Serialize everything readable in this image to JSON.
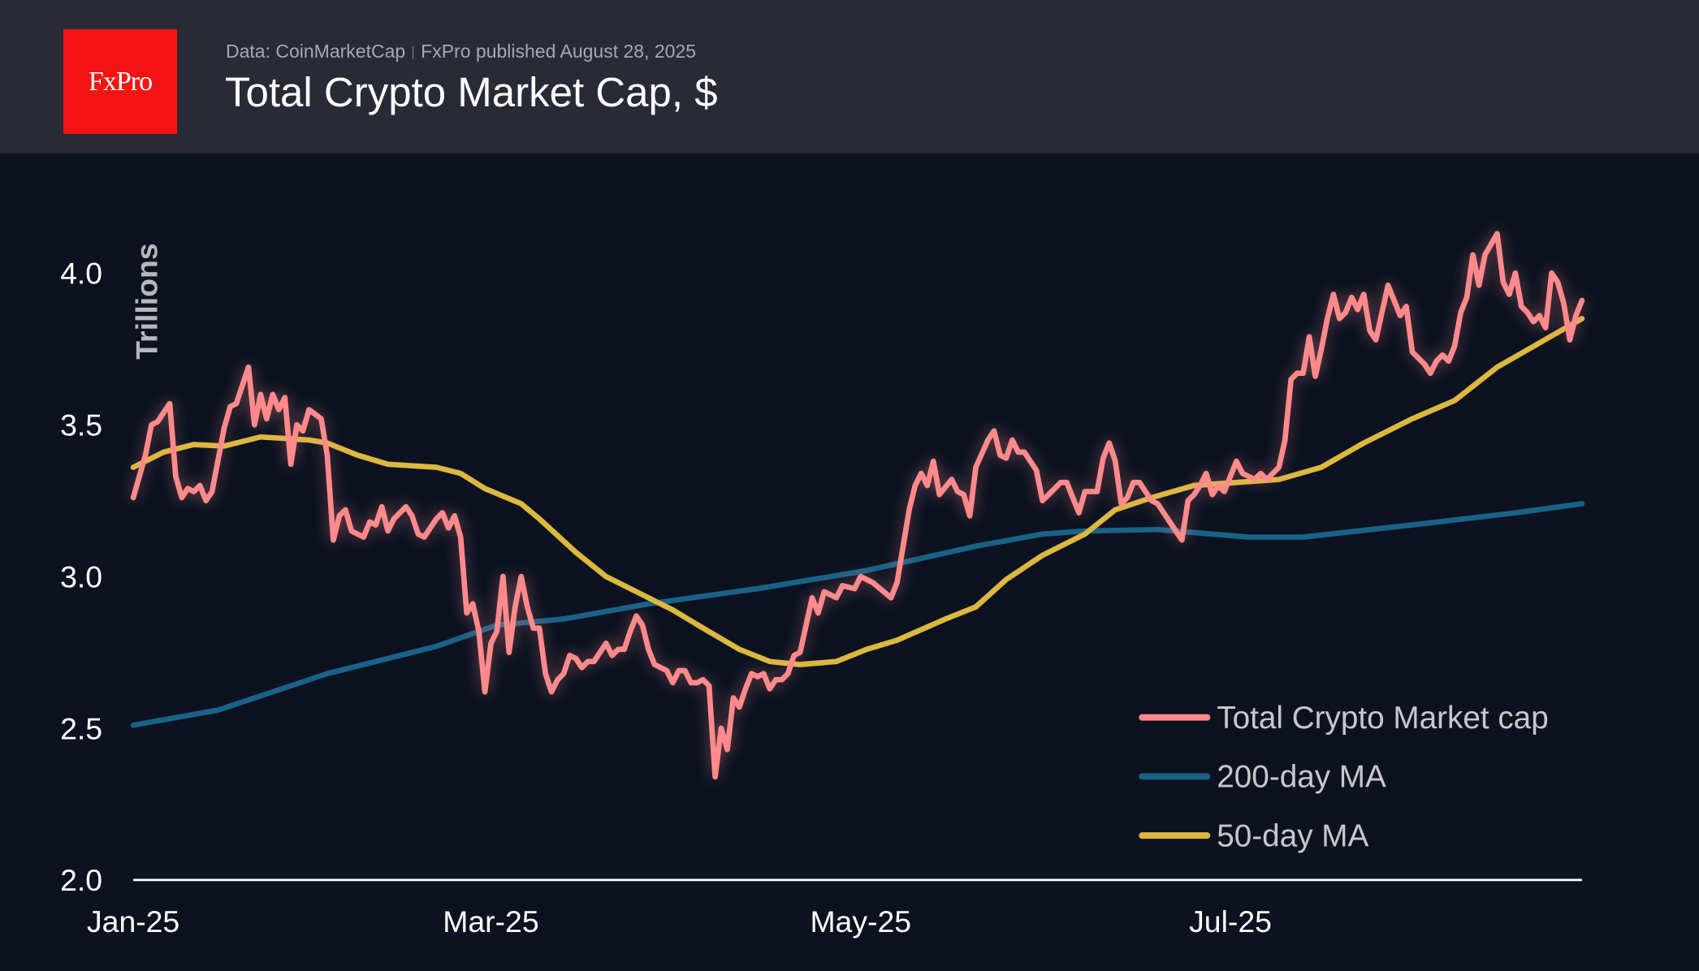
{
  "header": {
    "logo_text": "FxPro",
    "source": "Data: CoinMarketCap",
    "published": "FxPro published August 28, 2025",
    "title": "Total Crypto Market Cap, $"
  },
  "chart_data": {
    "type": "line",
    "title": "Total Crypto Market Cap, $",
    "ylabel": "Trillions",
    "xlabel": "",
    "ylim": [
      2.0,
      4.2
    ],
    "yticks": [
      "2.0",
      "2.5",
      "3.0",
      "3.5",
      "4.0"
    ],
    "xticks": [
      {
        "date": "2025-01-01",
        "label": "Jan-25"
      },
      {
        "date": "2025-03-01",
        "label": "Mar-25"
      },
      {
        "date": "2025-05-01",
        "label": "May-25"
      },
      {
        "date": "2025-07-01",
        "label": "Jul-25"
      }
    ],
    "xlim": [
      "2025-01-01",
      "2025-08-28"
    ],
    "grid": false,
    "legend_position": "bottom-right",
    "series": [
      {
        "name": "Total Crypto Market cap",
        "color": "#ff8a8c",
        "points": [
          [
            "2025-01-01",
            3.26
          ],
          [
            "2025-01-03",
            3.4
          ],
          [
            "2025-01-04",
            3.5
          ],
          [
            "2025-01-05",
            3.51
          ],
          [
            "2025-01-07",
            3.57
          ],
          [
            "2025-01-08",
            3.33
          ],
          [
            "2025-01-09",
            3.26
          ],
          [
            "2025-01-10",
            3.29
          ],
          [
            "2025-01-11",
            3.28
          ],
          [
            "2025-01-12",
            3.3
          ],
          [
            "2025-01-13",
            3.25
          ],
          [
            "2025-01-14",
            3.28
          ],
          [
            "2025-01-16",
            3.49
          ],
          [
            "2025-01-17",
            3.56
          ],
          [
            "2025-01-18",
            3.57
          ],
          [
            "2025-01-20",
            3.69
          ],
          [
            "2025-01-21",
            3.5
          ],
          [
            "2025-01-22",
            3.6
          ],
          [
            "2025-01-23",
            3.52
          ],
          [
            "2025-01-24",
            3.6
          ],
          [
            "2025-01-25",
            3.55
          ],
          [
            "2025-01-26",
            3.59
          ],
          [
            "2025-01-27",
            3.37
          ],
          [
            "2025-01-28",
            3.5
          ],
          [
            "2025-01-29",
            3.48
          ],
          [
            "2025-01-30",
            3.55
          ],
          [
            "2025-02-01",
            3.52
          ],
          [
            "2025-02-02",
            3.4
          ],
          [
            "2025-02-03",
            3.12
          ],
          [
            "2025-02-04",
            3.2
          ],
          [
            "2025-02-05",
            3.22
          ],
          [
            "2025-02-06",
            3.15
          ],
          [
            "2025-02-08",
            3.13
          ],
          [
            "2025-02-09",
            3.18
          ],
          [
            "2025-02-10",
            3.17
          ],
          [
            "2025-02-11",
            3.23
          ],
          [
            "2025-02-12",
            3.15
          ],
          [
            "2025-02-13",
            3.19
          ],
          [
            "2025-02-15",
            3.23
          ],
          [
            "2025-02-16",
            3.2
          ],
          [
            "2025-02-17",
            3.14
          ],
          [
            "2025-02-18",
            3.13
          ],
          [
            "2025-02-20",
            3.19
          ],
          [
            "2025-02-21",
            3.21
          ],
          [
            "2025-02-22",
            3.16
          ],
          [
            "2025-02-23",
            3.2
          ],
          [
            "2025-02-24",
            3.13
          ],
          [
            "2025-02-25",
            2.88
          ],
          [
            "2025-02-26",
            2.91
          ],
          [
            "2025-02-27",
            2.82
          ],
          [
            "2025-02-28",
            2.62
          ],
          [
            "2025-03-01",
            2.78
          ],
          [
            "2025-03-02",
            2.82
          ],
          [
            "2025-03-03",
            3.0
          ],
          [
            "2025-03-04",
            2.75
          ],
          [
            "2025-03-05",
            2.9
          ],
          [
            "2025-03-06",
            3.0
          ],
          [
            "2025-03-07",
            2.9
          ],
          [
            "2025-03-08",
            2.83
          ],
          [
            "2025-03-09",
            2.83
          ],
          [
            "2025-03-10",
            2.68
          ],
          [
            "2025-03-11",
            2.62
          ],
          [
            "2025-03-12",
            2.66
          ],
          [
            "2025-03-13",
            2.68
          ],
          [
            "2025-03-14",
            2.74
          ],
          [
            "2025-03-15",
            2.73
          ],
          [
            "2025-03-16",
            2.7
          ],
          [
            "2025-03-17",
            2.72
          ],
          [
            "2025-03-18",
            2.72
          ],
          [
            "2025-03-20",
            2.78
          ],
          [
            "2025-03-21",
            2.74
          ],
          [
            "2025-03-22",
            2.76
          ],
          [
            "2025-03-23",
            2.76
          ],
          [
            "2025-03-24",
            2.82
          ],
          [
            "2025-03-25",
            2.87
          ],
          [
            "2025-03-26",
            2.84
          ],
          [
            "2025-03-27",
            2.76
          ],
          [
            "2025-03-28",
            2.71
          ],
          [
            "2025-03-30",
            2.69
          ],
          [
            "2025-03-31",
            2.65
          ],
          [
            "2025-04-01",
            2.69
          ],
          [
            "2025-04-02",
            2.69
          ],
          [
            "2025-04-03",
            2.65
          ],
          [
            "2025-04-04",
            2.65
          ],
          [
            "2025-04-05",
            2.66
          ],
          [
            "2025-04-06",
            2.64
          ],
          [
            "2025-04-07",
            2.34
          ],
          [
            "2025-04-08",
            2.5
          ],
          [
            "2025-04-09",
            2.43
          ],
          [
            "2025-04-10",
            2.6
          ],
          [
            "2025-04-11",
            2.57
          ],
          [
            "2025-04-12",
            2.63
          ],
          [
            "2025-04-13",
            2.68
          ],
          [
            "2025-04-14",
            2.67
          ],
          [
            "2025-04-15",
            2.68
          ],
          [
            "2025-04-16",
            2.63
          ],
          [
            "2025-04-17",
            2.66
          ],
          [
            "2025-04-18",
            2.66
          ],
          [
            "2025-04-19",
            2.68
          ],
          [
            "2025-04-20",
            2.74
          ],
          [
            "2025-04-21",
            2.75
          ],
          [
            "2025-04-23",
            2.93
          ],
          [
            "2025-04-24",
            2.88
          ],
          [
            "2025-04-25",
            2.95
          ],
          [
            "2025-04-27",
            2.93
          ],
          [
            "2025-04-28",
            2.97
          ],
          [
            "2025-04-30",
            2.96
          ],
          [
            "2025-05-01",
            3.0
          ],
          [
            "2025-05-03",
            2.98
          ],
          [
            "2025-05-06",
            2.93
          ],
          [
            "2025-05-07",
            2.98
          ],
          [
            "2025-05-09",
            3.22
          ],
          [
            "2025-05-10",
            3.3
          ],
          [
            "2025-05-11",
            3.34
          ],
          [
            "2025-05-12",
            3.3
          ],
          [
            "2025-05-13",
            3.38
          ],
          [
            "2025-05-14",
            3.27
          ],
          [
            "2025-05-16",
            3.32
          ],
          [
            "2025-05-17",
            3.28
          ],
          [
            "2025-05-18",
            3.27
          ],
          [
            "2025-05-19",
            3.2
          ],
          [
            "2025-05-20",
            3.36
          ],
          [
            "2025-05-22",
            3.45
          ],
          [
            "2025-05-23",
            3.48
          ],
          [
            "2025-05-24",
            3.4
          ],
          [
            "2025-05-25",
            3.39
          ],
          [
            "2025-05-26",
            3.45
          ],
          [
            "2025-05-27",
            3.41
          ],
          [
            "2025-05-28",
            3.41
          ],
          [
            "2025-05-30",
            3.35
          ],
          [
            "2025-05-31",
            3.25
          ],
          [
            "2025-06-01",
            3.27
          ],
          [
            "2025-06-03",
            3.31
          ],
          [
            "2025-06-04",
            3.31
          ],
          [
            "2025-06-05",
            3.26
          ],
          [
            "2025-06-06",
            3.21
          ],
          [
            "2025-06-07",
            3.28
          ],
          [
            "2025-06-09",
            3.28
          ],
          [
            "2025-06-10",
            3.39
          ],
          [
            "2025-06-11",
            3.44
          ],
          [
            "2025-06-12",
            3.38
          ],
          [
            "2025-06-13",
            3.24
          ],
          [
            "2025-06-14",
            3.26
          ],
          [
            "2025-06-15",
            3.31
          ],
          [
            "2025-06-16",
            3.31
          ],
          [
            "2025-06-18",
            3.25
          ],
          [
            "2025-06-19",
            3.24
          ],
          [
            "2025-06-21",
            3.18
          ],
          [
            "2025-06-23",
            3.12
          ],
          [
            "2025-06-24",
            3.25
          ],
          [
            "2025-06-25",
            3.27
          ],
          [
            "2025-06-26",
            3.3
          ],
          [
            "2025-06-27",
            3.34
          ],
          [
            "2025-06-28",
            3.27
          ],
          [
            "2025-06-29",
            3.3
          ],
          [
            "2025-06-30",
            3.28
          ],
          [
            "2025-07-02",
            3.38
          ],
          [
            "2025-07-03",
            3.34
          ],
          [
            "2025-07-05",
            3.32
          ],
          [
            "2025-07-06",
            3.34
          ],
          [
            "2025-07-07",
            3.32
          ],
          [
            "2025-07-09",
            3.36
          ],
          [
            "2025-07-10",
            3.45
          ],
          [
            "2025-07-11",
            3.65
          ],
          [
            "2025-07-12",
            3.67
          ],
          [
            "2025-07-13",
            3.67
          ],
          [
            "2025-07-14",
            3.79
          ],
          [
            "2025-07-15",
            3.66
          ],
          [
            "2025-07-16",
            3.75
          ],
          [
            "2025-07-17",
            3.85
          ],
          [
            "2025-07-18",
            3.93
          ],
          [
            "2025-07-19",
            3.85
          ],
          [
            "2025-07-20",
            3.87
          ],
          [
            "2025-07-21",
            3.92
          ],
          [
            "2025-07-22",
            3.88
          ],
          [
            "2025-07-23",
            3.93
          ],
          [
            "2025-07-24",
            3.81
          ],
          [
            "2025-07-25",
            3.78
          ],
          [
            "2025-07-26",
            3.87
          ],
          [
            "2025-07-27",
            3.96
          ],
          [
            "2025-07-28",
            3.91
          ],
          [
            "2025-07-29",
            3.86
          ],
          [
            "2025-07-30",
            3.89
          ],
          [
            "2025-07-31",
            3.74
          ],
          [
            "2025-08-02",
            3.7
          ],
          [
            "2025-08-03",
            3.67
          ],
          [
            "2025-08-04",
            3.71
          ],
          [
            "2025-08-05",
            3.73
          ],
          [
            "2025-08-06",
            3.71
          ],
          [
            "2025-08-07",
            3.76
          ],
          [
            "2025-08-08",
            3.87
          ],
          [
            "2025-08-09",
            3.92
          ],
          [
            "2025-08-10",
            4.06
          ],
          [
            "2025-08-11",
            3.96
          ],
          [
            "2025-08-12",
            4.06
          ],
          [
            "2025-08-14",
            4.13
          ],
          [
            "2025-08-15",
            3.97
          ],
          [
            "2025-08-16",
            3.93
          ],
          [
            "2025-08-17",
            4.0
          ],
          [
            "2025-08-18",
            3.89
          ],
          [
            "2025-08-19",
            3.87
          ],
          [
            "2025-08-20",
            3.84
          ],
          [
            "2025-08-21",
            3.86
          ],
          [
            "2025-08-22",
            3.82
          ],
          [
            "2025-08-23",
            4.0
          ],
          [
            "2025-08-24",
            3.97
          ],
          [
            "2025-08-25",
            3.9
          ],
          [
            "2025-08-26",
            3.78
          ],
          [
            "2025-08-27",
            3.86
          ],
          [
            "2025-08-28",
            3.91
          ]
        ]
      },
      {
        "name": "200-day MA",
        "color": "#1a6186",
        "points": [
          [
            "2025-01-01",
            2.51
          ],
          [
            "2025-01-15",
            2.56
          ],
          [
            "2025-02-02",
            2.68
          ],
          [
            "2025-02-20",
            2.77
          ],
          [
            "2025-03-02",
            2.84
          ],
          [
            "2025-03-13",
            2.86
          ],
          [
            "2025-03-27",
            2.91
          ],
          [
            "2025-04-14",
            2.96
          ],
          [
            "2025-05-02",
            3.02
          ],
          [
            "2025-05-20",
            3.1
          ],
          [
            "2025-05-31",
            3.14
          ],
          [
            "2025-06-07",
            3.15
          ],
          [
            "2025-06-19",
            3.155
          ],
          [
            "2025-07-04",
            3.13
          ],
          [
            "2025-07-13",
            3.13
          ],
          [
            "2025-07-31",
            3.17
          ],
          [
            "2025-08-17",
            3.21
          ],
          [
            "2025-08-28",
            3.24
          ]
        ]
      },
      {
        "name": "50-day MA",
        "color": "#dcb840",
        "points": [
          [
            "2025-01-01",
            3.36
          ],
          [
            "2025-01-06",
            3.41
          ],
          [
            "2025-01-11",
            3.435
          ],
          [
            "2025-01-16",
            3.43
          ],
          [
            "2025-01-22",
            3.46
          ],
          [
            "2025-01-30",
            3.45
          ],
          [
            "2025-02-02",
            3.44
          ],
          [
            "2025-02-07",
            3.4
          ],
          [
            "2025-02-12",
            3.37
          ],
          [
            "2025-02-20",
            3.36
          ],
          [
            "2025-02-24",
            3.34
          ],
          [
            "2025-02-28",
            3.29
          ],
          [
            "2025-03-06",
            3.24
          ],
          [
            "2025-03-09",
            3.19
          ],
          [
            "2025-03-15",
            3.08
          ],
          [
            "2025-03-20",
            3.0
          ],
          [
            "2025-03-26",
            2.94
          ],
          [
            "2025-03-31",
            2.89
          ],
          [
            "2025-04-05",
            2.83
          ],
          [
            "2025-04-11",
            2.76
          ],
          [
            "2025-04-16",
            2.72
          ],
          [
            "2025-04-21",
            2.71
          ],
          [
            "2025-04-27",
            2.72
          ],
          [
            "2025-05-02",
            2.76
          ],
          [
            "2025-05-07",
            2.79
          ],
          [
            "2025-05-15",
            2.86
          ],
          [
            "2025-05-20",
            2.9
          ],
          [
            "2025-05-25",
            2.99
          ],
          [
            "2025-05-31",
            3.07
          ],
          [
            "2025-06-07",
            3.14
          ],
          [
            "2025-06-12",
            3.22
          ],
          [
            "2025-06-18",
            3.26
          ],
          [
            "2025-06-25",
            3.3
          ],
          [
            "2025-07-02",
            3.31
          ],
          [
            "2025-07-09",
            3.32
          ],
          [
            "2025-07-16",
            3.36
          ],
          [
            "2025-07-23",
            3.44
          ],
          [
            "2025-07-31",
            3.52
          ],
          [
            "2025-08-07",
            3.58
          ],
          [
            "2025-08-14",
            3.69
          ],
          [
            "2025-08-21",
            3.77
          ],
          [
            "2025-08-28",
            3.85
          ]
        ]
      }
    ]
  }
}
